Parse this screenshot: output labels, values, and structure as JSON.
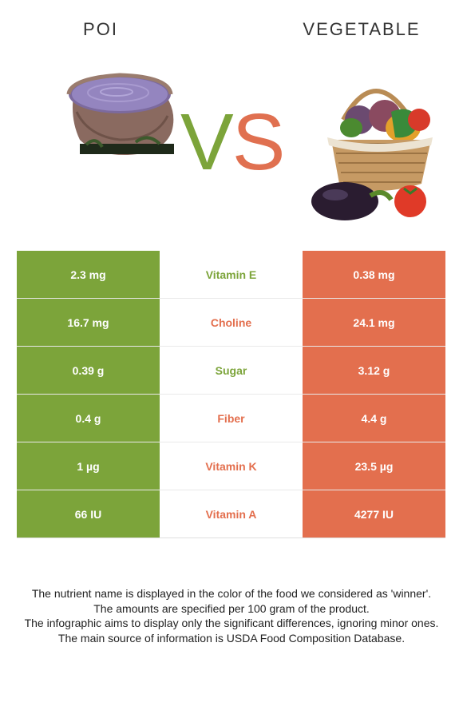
{
  "colors": {
    "left": "#7ca43a",
    "right": "#e36f4e"
  },
  "left_food": "POI",
  "right_food": "VEGETABLE",
  "vs": {
    "v": "V",
    "s": "S"
  },
  "rows": [
    {
      "nutrient": "Vitamin E",
      "left": "2.3 mg",
      "right": "0.38 mg",
      "winner": "left"
    },
    {
      "nutrient": "Choline",
      "left": "16.7 mg",
      "right": "24.1 mg",
      "winner": "right"
    },
    {
      "nutrient": "Sugar",
      "left": "0.39 g",
      "right": "3.12 g",
      "winner": "left"
    },
    {
      "nutrient": "Fiber",
      "left": "0.4 g",
      "right": "4.4 g",
      "winner": "right"
    },
    {
      "nutrient": "Vitamin K",
      "left": "1 µg",
      "right": "23.5 µg",
      "winner": "right"
    },
    {
      "nutrient": "Vitamin A",
      "left": "66 IU",
      "right": "4277 IU",
      "winner": "right"
    }
  ],
  "footer": [
    "The nutrient name is displayed in the color of the food we considered as 'winner'.",
    "The amounts are specified per 100 gram of the product.",
    "The infographic aims to display only the significant differences, ignoring minor ones.",
    "The main source of information is USDA Food Composition Database."
  ],
  "images": {
    "left": "poi-bowl-image",
    "right": "vegetable-basket-image"
  }
}
